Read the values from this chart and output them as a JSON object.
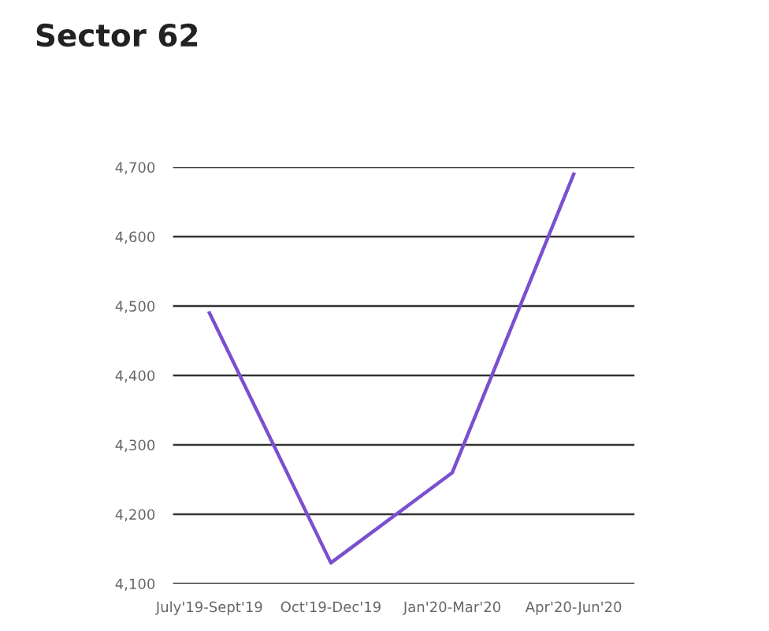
{
  "chart_data": {
    "type": "line",
    "title": "Sector 62",
    "categories": [
      "July'19-Sept'19",
      "Oct'19-Dec'19",
      "Jan'20-Mar'20",
      "Apr'20-Jun'20"
    ],
    "series": [
      {
        "color": "#7b4fd0",
        "values": [
          4490,
          4130,
          4260,
          4690
        ]
      }
    ],
    "ylim": [
      4100,
      4700
    ],
    "yticks": [
      {
        "value": 4100,
        "label": "4,100"
      },
      {
        "value": 4200,
        "label": "4,200"
      },
      {
        "value": 4300,
        "label": "4,300"
      },
      {
        "value": 4400,
        "label": "4,400"
      },
      {
        "value": 4500,
        "label": "4,500"
      },
      {
        "value": 4600,
        "label": "4,600"
      },
      {
        "value": 4700,
        "label": "4,700"
      }
    ],
    "grid": "y",
    "marker": "none",
    "line_style": "solid"
  }
}
